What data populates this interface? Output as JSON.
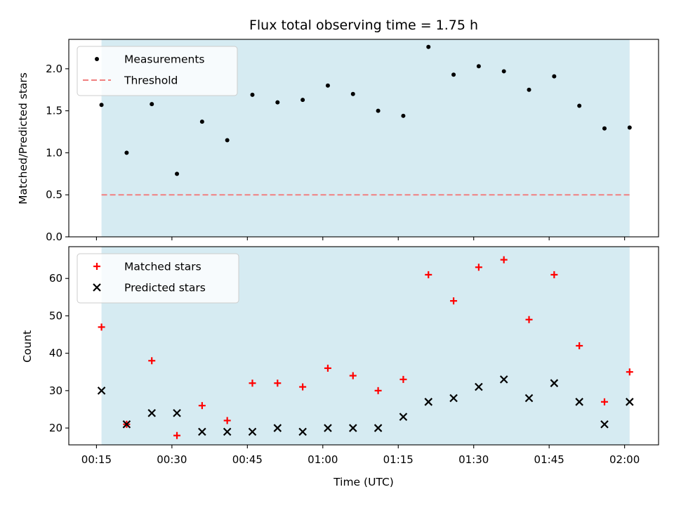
{
  "chart_data": [
    {
      "type": "scatter",
      "title": "Flux total observing time = 1.75 h",
      "xlabel": "",
      "ylabel": "Matched/Predicted stars",
      "ylim": [
        0,
        2.35
      ],
      "yticks": [
        "0.0",
        "0.5",
        "1.0",
        "1.5",
        "2.0"
      ],
      "grid": false,
      "legend_position": "top-left",
      "shaded_span": [
        "00:16",
        "02:01"
      ],
      "shade_color": "#add8e6",
      "series": [
        {
          "name": "Measurements",
          "marker": "dot",
          "color": "#000000",
          "x": [
            "00:16",
            "00:21",
            "00:26",
            "00:31",
            "00:36",
            "00:41",
            "00:46",
            "00:51",
            "00:56",
            "01:01",
            "01:06",
            "01:11",
            "01:16",
            "01:21",
            "01:26",
            "01:31",
            "01:36",
            "01:41",
            "01:46",
            "01:51",
            "01:56",
            "02:01"
          ],
          "y": [
            1.57,
            1.0,
            1.58,
            0.75,
            1.37,
            1.15,
            1.69,
            1.6,
            1.63,
            1.8,
            1.7,
            1.5,
            1.44,
            2.26,
            1.93,
            2.03,
            1.97,
            1.75,
            1.91,
            1.56,
            1.29,
            1.3
          ]
        },
        {
          "name": "Threshold",
          "marker": "dashed-line",
          "color": "#f08080",
          "x": [
            "00:16",
            "02:01"
          ],
          "y": [
            0.5,
            0.5
          ]
        }
      ]
    },
    {
      "type": "scatter",
      "title": "",
      "xlabel": "Time (UTC)",
      "ylabel": "Count",
      "ylim": [
        15.5,
        68.5
      ],
      "yticks": [
        "20",
        "30",
        "40",
        "50",
        "60"
      ],
      "xticks": [
        "00:15",
        "00:30",
        "00:45",
        "01:00",
        "01:15",
        "01:30",
        "01:45",
        "02:00"
      ],
      "grid": false,
      "legend_position": "top-left",
      "shaded_span": [
        "00:16",
        "02:01"
      ],
      "shade_color": "#add8e6",
      "series": [
        {
          "name": "Matched stars",
          "marker": "plus",
          "color": "#ff0000",
          "x": [
            "00:16",
            "00:21",
            "00:26",
            "00:31",
            "00:36",
            "00:41",
            "00:46",
            "00:51",
            "00:56",
            "01:01",
            "01:06",
            "01:11",
            "01:16",
            "01:21",
            "01:26",
            "01:31",
            "01:36",
            "01:41",
            "01:46",
            "01:51",
            "01:56",
            "02:01"
          ],
          "y": [
            47,
            21,
            38,
            18,
            26,
            22,
            32,
            32,
            31,
            36,
            34,
            30,
            33,
            61,
            54,
            63,
            65,
            49,
            61,
            42,
            27,
            35
          ]
        },
        {
          "name": "Predicted stars",
          "marker": "x",
          "color": "#000000",
          "x": [
            "00:16",
            "00:21",
            "00:26",
            "00:31",
            "00:36",
            "00:41",
            "00:46",
            "00:51",
            "00:56",
            "01:01",
            "01:06",
            "01:11",
            "01:16",
            "01:21",
            "01:26",
            "01:31",
            "01:36",
            "01:41",
            "01:46",
            "01:51",
            "01:56",
            "02:01"
          ],
          "y": [
            30,
            21,
            24,
            24,
            19,
            19,
            19,
            20,
            19,
            20,
            20,
            20,
            23,
            27,
            28,
            31,
            33,
            28,
            32,
            27,
            21,
            27
          ]
        }
      ]
    }
  ]
}
